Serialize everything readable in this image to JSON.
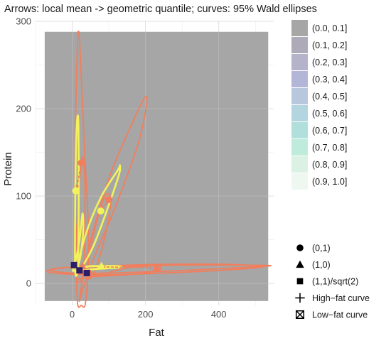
{
  "chart_data": {
    "type": "scatter",
    "title": "Arrows: local mean -> geometric quantile; curves: 95% Wald ellipses",
    "xlabel": "Fat",
    "ylabel": "Protein",
    "xlim": [
      -100,
      550
    ],
    "ylim": [
      -25,
      300
    ],
    "x_ticks": [
      0,
      200,
      400
    ],
    "y_ticks": [
      0,
      100,
      200,
      300
    ],
    "grid": true,
    "background_region": {
      "x": [
        -75,
        535
      ],
      "y": [
        -20,
        288
      ],
      "color": "#a6a6a6"
    },
    "fill_legend": {
      "position": "right",
      "entries": [
        {
          "label": "(0.0, 0.1]",
          "color": "#a6a6a6"
        },
        {
          "label": "(0.1, 0.2]",
          "color": "#afaab7"
        },
        {
          "label": "(0.2, 0.3]",
          "color": "#b5b3c9"
        },
        {
          "label": "(0.3, 0.4]",
          "color": "#b3b6d6"
        },
        {
          "label": "(0.4, 0.5]",
          "color": "#b8c8dc"
        },
        {
          "label": "(0.5, 0.6]",
          "color": "#b3d5df"
        },
        {
          "label": "(0.6, 0.7]",
          "color": "#b1dfdc"
        },
        {
          "label": "(0.7, 0.8]",
          "color": "#bfebdd"
        },
        {
          "label": "(0.8, 0.9]",
          "color": "#daf1e4"
        },
        {
          "label": "(0.9, 1.0]",
          "color": "#eef8f1"
        }
      ]
    },
    "shape_legend": {
      "position": "bottom-right",
      "entries": [
        {
          "label": "(0,1)",
          "shape": "circle"
        },
        {
          "label": "(1,0)",
          "shape": "triangle"
        },
        {
          "label": "(1,1)/sqrt(2)",
          "shape": "square"
        },
        {
          "label": "High−fat curve",
          "shape": "plus"
        },
        {
          "label": "Low−fat curve",
          "shape": "boxed-x"
        }
      ]
    },
    "ellipses": [
      {
        "color": "#f07f5d",
        "points": [
          [
            14,
            -20
          ],
          [
            10,
            50
          ],
          [
            8,
            150
          ],
          [
            14,
            270
          ],
          [
            17,
            288
          ],
          [
            21,
            270
          ],
          [
            34,
            150
          ],
          [
            45,
            50
          ],
          [
            37,
            -20
          ],
          [
            25,
            -25
          ]
        ]
      },
      {
        "color": "#f07f5d",
        "points": [
          [
            20,
            -18
          ],
          [
            45,
            40
          ],
          [
            100,
            120
          ],
          [
            160,
            180
          ],
          [
            197,
            212
          ],
          [
            203,
            205
          ],
          [
            180,
            160
          ],
          [
            120,
            90
          ],
          [
            60,
            30
          ],
          [
            30,
            -5
          ]
        ]
      },
      {
        "color": "#f07f5d",
        "points": [
          [
            -60,
            15
          ],
          [
            0,
            12
          ],
          [
            100,
            12
          ],
          [
            250,
            14
          ],
          [
            400,
            17
          ],
          [
            535,
            20
          ],
          [
            500,
            21
          ],
          [
            300,
            21
          ],
          [
            150,
            20
          ],
          [
            50,
            19
          ],
          [
            -30,
            18
          ]
        ]
      },
      {
        "color": "#f07f5d",
        "points": [
          [
            -70,
            14
          ],
          [
            -20,
            11
          ],
          [
            100,
            10
          ],
          [
            250,
            12
          ],
          [
            400,
            15
          ],
          [
            520,
            19
          ],
          [
            420,
            22
          ],
          [
            250,
            22
          ],
          [
            80,
            20
          ],
          [
            -20,
            18
          ]
        ]
      },
      {
        "color": "#f07f5d",
        "points": [
          [
            10,
            10
          ],
          [
            15,
            80
          ],
          [
            25,
            140
          ],
          [
            33,
            135
          ],
          [
            35,
            80
          ],
          [
            30,
            10
          ]
        ]
      },
      {
        "color": "#f07f5d",
        "points": [
          [
            40,
            10
          ],
          [
            60,
            60
          ],
          [
            90,
            100
          ],
          [
            105,
            95
          ],
          [
            90,
            55
          ],
          [
            60,
            12
          ]
        ]
      },
      {
        "color": "#f07f5d",
        "points": [
          [
            15,
            5
          ],
          [
            80,
            10
          ],
          [
            150,
            18
          ],
          [
            235,
            20
          ],
          [
            230,
            14
          ],
          [
            150,
            10
          ],
          [
            60,
            8
          ]
        ]
      },
      {
        "color": "#f2f25c",
        "points": [
          [
            8,
            15
          ],
          [
            8,
            80
          ],
          [
            10,
            150
          ],
          [
            14,
            190
          ],
          [
            17,
            180
          ],
          [
            18,
            120
          ],
          [
            17,
            50
          ],
          [
            15,
            15
          ]
        ]
      },
      {
        "color": "#f2f25c",
        "points": [
          [
            15,
            20
          ],
          [
            40,
            60
          ],
          [
            80,
            100
          ],
          [
            125,
            130
          ],
          [
            130,
            135
          ],
          [
            128,
            125
          ],
          [
            100,
            90
          ],
          [
            60,
            45
          ],
          [
            25,
            18
          ]
        ]
      },
      {
        "color": "#f2f25c",
        "points": [
          [
            5,
            14
          ],
          [
            30,
            15
          ],
          [
            70,
            17
          ],
          [
            120,
            18
          ],
          [
            135,
            19
          ],
          [
            120,
            20
          ],
          [
            70,
            20
          ],
          [
            30,
            19
          ],
          [
            5,
            17
          ]
        ]
      },
      {
        "color": "#f2f25c",
        "points": [
          [
            0,
            18
          ],
          [
            8,
            24
          ],
          [
            20,
            50
          ],
          [
            28,
            80
          ],
          [
            30,
            60
          ],
          [
            22,
            30
          ],
          [
            12,
            18
          ]
        ]
      },
      {
        "color": "#f2f25c",
        "points": [
          [
            20,
            15
          ],
          [
            50,
            20
          ],
          [
            80,
            19
          ],
          [
            110,
            18
          ],
          [
            80,
            17
          ],
          [
            50,
            16
          ]
        ]
      }
    ],
    "arrows": [
      {
        "color": "#f07f5d",
        "from": [
          25,
          138
        ],
        "to": [
          12,
          108
        ]
      },
      {
        "color": "#f07f5d",
        "from": [
          100,
          96
        ],
        "to": [
          78,
          84
        ]
      },
      {
        "color": "#f07f5d",
        "from": [
          230,
          18
        ],
        "to": [
          80,
          19
        ]
      },
      {
        "color": "#f07f5d",
        "from": [
          45,
          12
        ],
        "to": [
          22,
          14
        ]
      }
    ],
    "points": [
      {
        "shape": "circle",
        "color": "#f07f5d",
        "x": 25,
        "y": 138
      },
      {
        "shape": "circle",
        "color": "#f07f5d",
        "x": 100,
        "y": 96
      },
      {
        "shape": "circle",
        "color": "#f2f25c",
        "x": 10,
        "y": 106
      },
      {
        "shape": "circle",
        "color": "#f2f25c",
        "x": 78,
        "y": 83
      },
      {
        "shape": "circle",
        "color": "#f07f5d",
        "x": 45,
        "y": 12
      },
      {
        "shape": "triangle",
        "color": "#f07f5d",
        "x": 230,
        "y": 18
      },
      {
        "shape": "triangle",
        "color": "#f2f25c",
        "x": 80,
        "y": 20
      },
      {
        "shape": "triangle",
        "color": "#f07f5d",
        "x": 28,
        "y": 20
      },
      {
        "shape": "square",
        "color": "#2d1e6a",
        "x": 5,
        "y": 21
      },
      {
        "shape": "square",
        "color": "#2d1e6a",
        "x": 40,
        "y": 12
      },
      {
        "shape": "square",
        "color": "#2d1e6a",
        "x": 20,
        "y": 15
      }
    ]
  }
}
